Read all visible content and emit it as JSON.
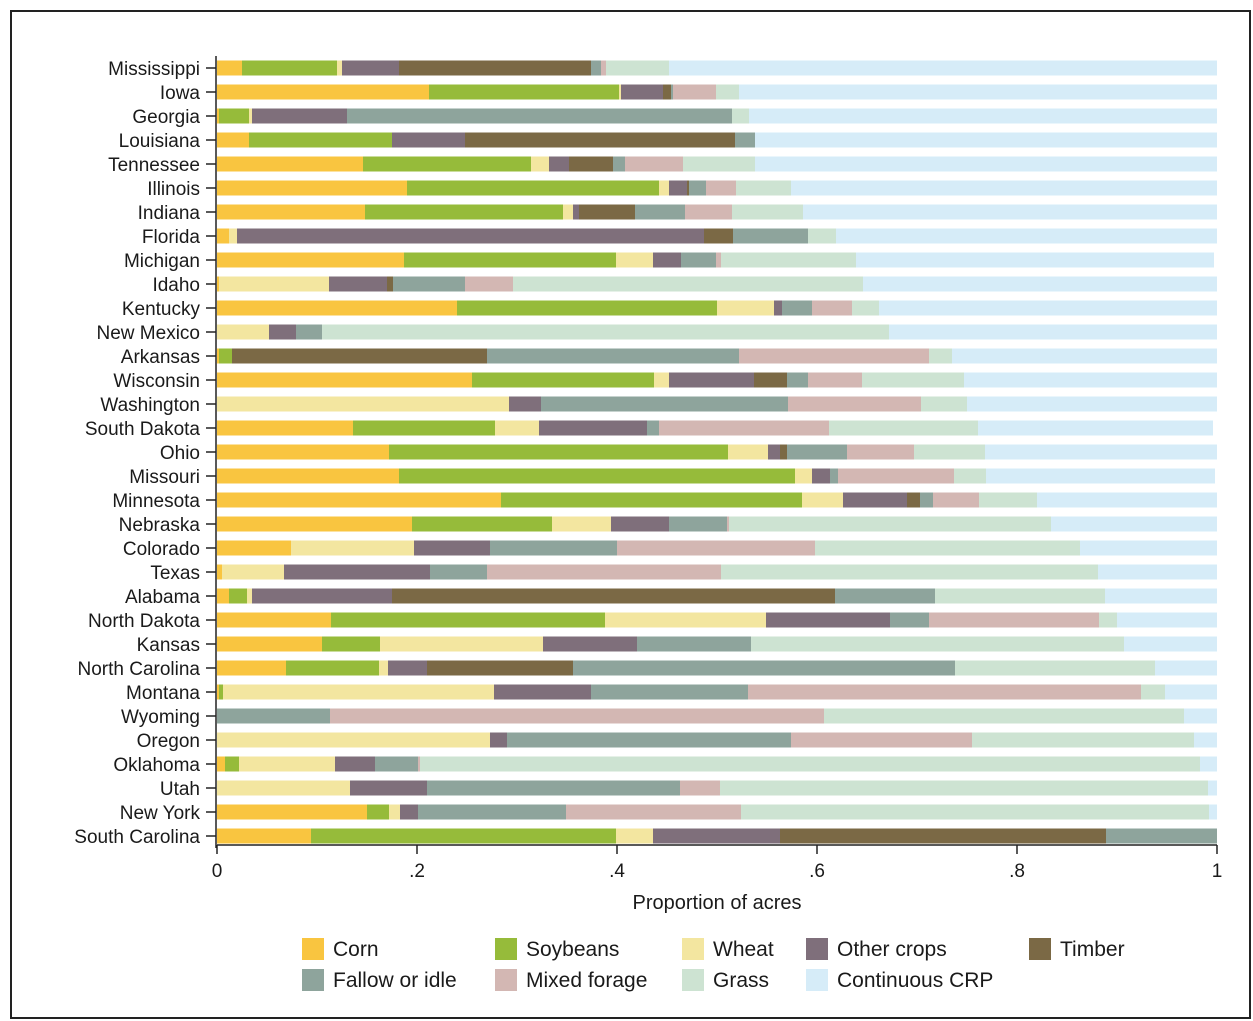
{
  "chart_data": {
    "type": "bar",
    "orientation": "horizontal",
    "stacked": true,
    "title": "",
    "xlabel": "Proportion of acres",
    "ylabel": "",
    "xlim": [
      0,
      1
    ],
    "xticks": [
      0,
      0.2,
      0.4,
      0.6,
      0.8,
      1
    ],
    "xtick_labels": [
      "0",
      ".2",
      ".4",
      ".6",
      ".8",
      "1"
    ],
    "grid": false,
    "legend_position": "bottom",
    "categories": [
      "Mississippi",
      "Iowa",
      "Georgia",
      "Louisiana",
      "Tennessee",
      "Illinois",
      "Indiana",
      "Florida",
      "Michigan",
      "Idaho",
      "Kentucky",
      "New Mexico",
      "Arkansas",
      "Wisconsin",
      "Washington",
      "South Dakota",
      "Ohio",
      "Missouri",
      "Minnesota",
      "Nebraska",
      "Colorado",
      "Texas",
      "Alabama",
      "North Dakota",
      "Kansas",
      "North Carolina",
      "Montana",
      "Wyoming",
      "Oregon",
      "Oklahoma",
      "Utah",
      "New York",
      "South Carolina"
    ],
    "series": [
      {
        "name": "Corn",
        "color": "#f9c540",
        "values": [
          0.025,
          0.212,
          0.002,
          0.032,
          0.146,
          0.19,
          0.148,
          0.012,
          0.187,
          0.002,
          0.24,
          0.0,
          0.002,
          0.255,
          0.0,
          0.136,
          0.172,
          0.182,
          0.284,
          0.195,
          0.074,
          0.005,
          0.012,
          0.114,
          0.105,
          0.069,
          0.002,
          0.0,
          0.0,
          0.008,
          0.0,
          0.15,
          0.094
        ]
      },
      {
        "name": "Soybeans",
        "color": "#96bb3a",
        "values": [
          0.095,
          0.19,
          0.03,
          0.143,
          0.168,
          0.252,
          0.198,
          0.0,
          0.212,
          0.0,
          0.26,
          0.0,
          0.013,
          0.182,
          0.0,
          0.142,
          0.339,
          0.396,
          0.301,
          0.14,
          0.0,
          0.0,
          0.018,
          0.274,
          0.058,
          0.093,
          0.004,
          0.0,
          0.0,
          0.014,
          0.0,
          0.022,
          0.305
        ]
      },
      {
        "name": "Wheat",
        "color": "#f3e6a0",
        "values": [
          0.005,
          0.002,
          0.003,
          0.0,
          0.018,
          0.01,
          0.01,
          0.008,
          0.037,
          0.11,
          0.057,
          0.052,
          0.0,
          0.015,
          0.292,
          0.044,
          0.04,
          0.017,
          0.041,
          0.059,
          0.123,
          0.062,
          0.005,
          0.161,
          0.163,
          0.009,
          0.271,
          0.0,
          0.273,
          0.096,
          0.133,
          0.011,
          0.037
        ]
      },
      {
        "name": "Other crops",
        "color": "#7f6f7b",
        "values": [
          0.057,
          0.042,
          0.095,
          0.073,
          0.02,
          0.018,
          0.006,
          0.467,
          0.028,
          0.058,
          0.008,
          0.027,
          0.0,
          0.085,
          0.032,
          0.108,
          0.012,
          0.018,
          0.064,
          0.058,
          0.076,
          0.146,
          0.14,
          0.124,
          0.094,
          0.039,
          0.097,
          0.0,
          0.017,
          0.04,
          0.077,
          0.018,
          0.127
        ]
      },
      {
        "name": "Timber",
        "color": "#7b6945",
        "values": [
          0.192,
          0.008,
          0.0,
          0.27,
          0.044,
          0.002,
          0.056,
          0.029,
          0.0,
          0.006,
          0.0,
          0.0,
          0.255,
          0.033,
          0.0,
          0.0,
          0.007,
          0.0,
          0.013,
          0.0,
          0.0,
          0.0,
          0.443,
          0.0,
          0.0,
          0.146,
          0.0,
          0.0,
          0.0,
          0.0,
          0.0,
          0.0,
          0.326
        ]
      },
      {
        "name": "Fallow or idle",
        "color": "#8ea49c",
        "values": [
          0.01,
          0.002,
          0.385,
          0.02,
          0.012,
          0.017,
          0.05,
          0.075,
          0.035,
          0.072,
          0.03,
          0.026,
          0.252,
          0.021,
          0.247,
          0.012,
          0.06,
          0.008,
          0.013,
          0.058,
          0.127,
          0.057,
          0.1,
          0.039,
          0.114,
          0.382,
          0.157,
          0.113,
          0.284,
          0.043,
          0.253,
          0.148,
          0.111
        ]
      },
      {
        "name": "Mixed forage",
        "color": "#d3b7b3",
        "values": [
          0.005,
          0.043,
          0.0,
          0.0,
          0.058,
          0.03,
          0.047,
          0.0,
          0.005,
          0.048,
          0.04,
          0.0,
          0.19,
          0.054,
          0.133,
          0.17,
          0.067,
          0.116,
          0.046,
          0.002,
          0.198,
          0.234,
          0.0,
          0.17,
          0.0,
          0.0,
          0.393,
          0.494,
          0.181,
          0.002,
          0.04,
          0.175,
          0.0
        ]
      },
      {
        "name": "Grass",
        "color": "#cde3d2",
        "values": [
          0.063,
          0.023,
          0.017,
          0.0,
          0.072,
          0.055,
          0.071,
          0.028,
          0.135,
          0.35,
          0.027,
          0.567,
          0.023,
          0.102,
          0.046,
          0.149,
          0.071,
          0.032,
          0.058,
          0.322,
          0.265,
          0.377,
          0.17,
          0.018,
          0.373,
          0.2,
          0.024,
          0.36,
          0.222,
          0.78,
          0.488,
          0.468,
          0.0
        ]
      },
      {
        "name": "Continuous CRP",
        "color": "#d6ecf8",
        "values": [
          0.548,
          0.478,
          0.468,
          0.462,
          0.462,
          0.426,
          0.414,
          0.381,
          0.358,
          0.354,
          0.338,
          0.328,
          0.265,
          0.253,
          0.25,
          0.235,
          0.232,
          0.229,
          0.18,
          0.166,
          0.137,
          0.119,
          0.112,
          0.1,
          0.093,
          0.062,
          0.052,
          0.033,
          0.023,
          0.017,
          0.009,
          0.008,
          0.0
        ]
      }
    ]
  }
}
